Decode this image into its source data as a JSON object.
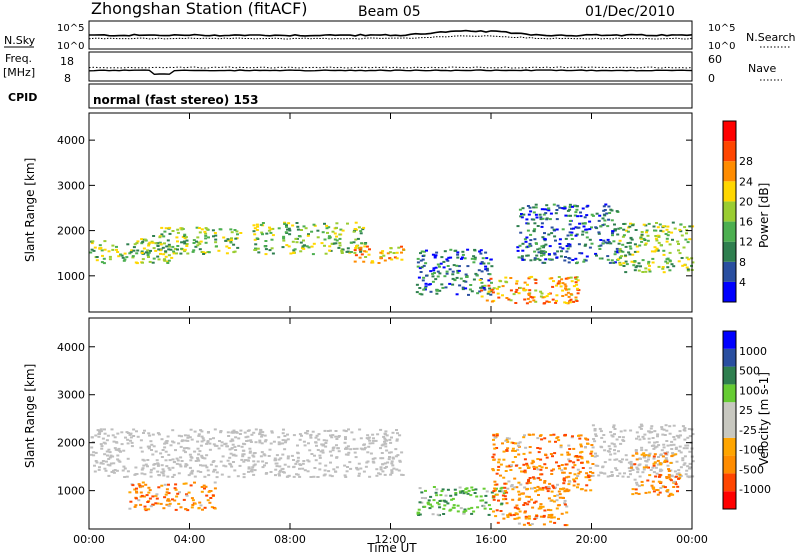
{
  "header": {
    "station": "Zhongshan Station (fitACF)",
    "beam": "Beam 05",
    "date": "01/Dec/2010"
  },
  "summary_panels": {
    "nsky_label": "N.Sky",
    "nsearch_label": "N.Search",
    "freq_label_line1": "Freq.",
    "freq_label_line2": "[MHz]",
    "nave_label": "Nave",
    "cpid_label": "CPID",
    "cpid_text": "normal (fast stereo) 153",
    "noise_ticks_left": [
      "10^5",
      "10^0"
    ],
    "noise_ticks_right": [
      "10^5",
      "10^0"
    ],
    "freq_ticks": [
      "18",
      "8"
    ],
    "nave_ticks": [
      "60",
      "0"
    ]
  },
  "colors": {
    "power_scale": [
      "#0000ff",
      "#2a4fa0",
      "#2f7f4f",
      "#4caf50",
      "#9acd32",
      "#ffd700",
      "#ff8c00",
      "#ff4500",
      "#ff0000"
    ],
    "velocity_scale": [
      "#ff0000",
      "#ff4500",
      "#ff8c00",
      "#ffa500",
      "#c8c8c0",
      "#c8c8c0",
      "#66cc33",
      "#2f7f4f",
      "#2a4fa0",
      "#0000ff"
    ],
    "ground_scatter": "#bebebe"
  },
  "chart_data": [
    {
      "type": "heatmap",
      "title": "Power",
      "xlabel": "Time UT",
      "ylabel": "Slant Range [km]",
      "x_ticks": [
        "00:00",
        "04:00",
        "08:00",
        "12:00",
        "16:00",
        "20:00",
        "00:00"
      ],
      "y_ticks": [
        "1000",
        "2000",
        "3000",
        "4000"
      ],
      "ylim": [
        200,
        4600
      ],
      "colorbar_label": "Power [dB]",
      "colorbar_ticks": [
        "4",
        "8",
        "12",
        "16",
        "20",
        "24",
        "28"
      ],
      "scatter_regions_hours_km": [
        {
          "t": [
            0,
            3.5
          ],
          "r": [
            1300,
            1800
          ],
          "level": "medium"
        },
        {
          "t": [
            2,
            6
          ],
          "r": [
            1500,
            2100
          ],
          "level": "medium"
        },
        {
          "t": [
            6.5,
            11
          ],
          "r": [
            1500,
            2200
          ],
          "level": "medium"
        },
        {
          "t": [
            10.5,
            12.5
          ],
          "r": [
            1300,
            1700
          ],
          "level": "high"
        },
        {
          "t": [
            13,
            16
          ],
          "r": [
            600,
            1600
          ],
          "level": "low"
        },
        {
          "t": [
            15.5,
            19.5
          ],
          "r": [
            400,
            1000
          ],
          "level": "high"
        },
        {
          "t": [
            17,
            21
          ],
          "r": [
            1300,
            2600
          ],
          "level": "low"
        },
        {
          "t": [
            21,
            24
          ],
          "r": [
            1100,
            2200
          ],
          "level": "medium"
        }
      ]
    },
    {
      "type": "heatmap",
      "title": "Velocity",
      "xlabel": "Time UT",
      "ylabel": "Slant Range [km]",
      "x_ticks": [
        "00:00",
        "04:00",
        "08:00",
        "12:00",
        "16:00",
        "20:00",
        "00:00"
      ],
      "y_ticks": [
        "1000",
        "2000",
        "3000",
        "4000"
      ],
      "ylim": [
        200,
        4600
      ],
      "colorbar_label": "Velocity [m s-1]",
      "colorbar_ticks": [
        "1000",
        "500",
        "100",
        "25",
        "-25",
        "-100",
        "-500",
        "-1000"
      ],
      "scatter_regions_hours_km": [
        {
          "t": [
            0,
            12.5
          ],
          "r": [
            1300,
            2300
          ],
          "level": "ground"
        },
        {
          "t": [
            1.5,
            5
          ],
          "r": [
            600,
            1200
          ],
          "level": "negative"
        },
        {
          "t": [
            13,
            16.5
          ],
          "r": [
            500,
            1100
          ],
          "level": "positive"
        },
        {
          "t": [
            16,
            19
          ],
          "r": [
            300,
            1100
          ],
          "level": "negative"
        },
        {
          "t": [
            16,
            20
          ],
          "r": [
            1000,
            2200
          ],
          "level": "negative"
        },
        {
          "t": [
            20,
            24
          ],
          "r": [
            1300,
            2400
          ],
          "level": "ground"
        },
        {
          "t": [
            21.5,
            23.5
          ],
          "r": [
            900,
            1800
          ],
          "level": "negative"
        }
      ]
    }
  ]
}
